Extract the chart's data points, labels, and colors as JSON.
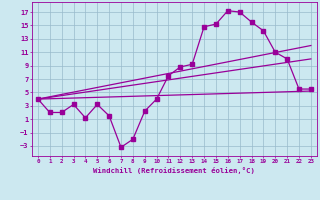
{
  "xlabel": "Windchill (Refroidissement éolien,°C)",
  "bg_color": "#cce8f0",
  "line_color": "#990099",
  "grid_color": "#99bbcc",
  "x_ticks": [
    0,
    1,
    2,
    3,
    4,
    5,
    6,
    7,
    8,
    9,
    10,
    11,
    12,
    13,
    14,
    15,
    16,
    17,
    18,
    19,
    20,
    21,
    22,
    23
  ],
  "y_ticks": [
    -3,
    -1,
    1,
    3,
    5,
    7,
    9,
    11,
    13,
    15,
    17
  ],
  "xlim": [
    -0.5,
    23.5
  ],
  "ylim": [
    -4.5,
    18.5
  ],
  "straight_lines": [
    {
      "x": [
        0,
        23
      ],
      "y": [
        4.0,
        5.2
      ]
    },
    {
      "x": [
        0,
        23
      ],
      "y": [
        4.0,
        10.0
      ]
    },
    {
      "x": [
        0,
        23
      ],
      "y": [
        4.0,
        12.0
      ]
    }
  ],
  "main_curve_x": [
    0,
    1,
    2,
    3,
    4,
    5,
    6,
    7,
    8,
    9,
    10,
    11,
    12,
    13,
    14,
    15,
    16,
    17,
    18,
    19,
    20,
    21,
    22,
    23
  ],
  "main_curve_y": [
    4,
    2,
    2,
    3.2,
    1.2,
    3.2,
    1.5,
    -3.2,
    -2.0,
    2.2,
    4,
    7.5,
    8.8,
    9.2,
    14.8,
    15.2,
    17.2,
    17.0,
    15.5,
    14.2,
    11.0,
    10.0,
    5.5,
    5.5
  ]
}
